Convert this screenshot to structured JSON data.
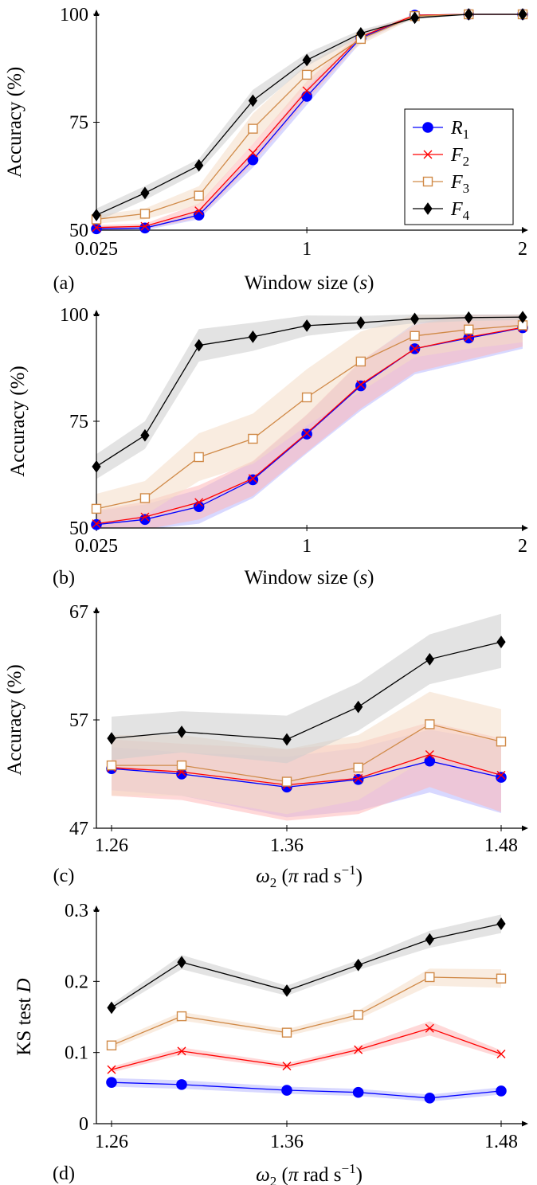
{
  "colors": {
    "R1": "#0000ff",
    "F2": "#ff0000",
    "F3": "#d08a48",
    "F4": "#000000",
    "band_R1": "#b8b8ff",
    "band_F2": "#ffb8b8",
    "band_F3": "#f4dcc6",
    "band_F4": "#cccccc"
  },
  "legend": {
    "R1": "R",
    "R1_sub": "1",
    "F2": "F",
    "F2_sub": "2",
    "F3": "F",
    "F3_sub": "3",
    "F4": "F",
    "F4_sub": "4"
  },
  "chart_data": [
    {
      "type": "line",
      "panel_label": "(a)",
      "xlabel": "Window size (s)",
      "ylabel": "Accuracy (%)",
      "xlim": [
        0.025,
        2
      ],
      "ylim": [
        50,
        100
      ],
      "x_ticks": [
        "0.025",
        "1",
        "2"
      ],
      "y_ticks": [
        "50",
        "75",
        "100"
      ],
      "legend_position": "center-right",
      "x": [
        0.025,
        0.25,
        0.5,
        0.75,
        1.0,
        1.25,
        1.5,
        1.75,
        2.0
      ],
      "series": [
        {
          "key": "R1",
          "name": "R1",
          "marker": "circle",
          "values": [
            50.3,
            50.5,
            53.5,
            66.3,
            81.0,
            94.5,
            99.8,
            100,
            100
          ],
          "lower": [
            49.8,
            50.0,
            52.5,
            64.5,
            79.0,
            93.5,
            99.5,
            99.9,
            99.9
          ],
          "upper": [
            50.8,
            51.0,
            54.5,
            68.0,
            83.0,
            95.5,
            100,
            100,
            100
          ]
        },
        {
          "key": "F2",
          "name": "F2",
          "marker": "x",
          "values": [
            50.6,
            50.9,
            54.5,
            67.9,
            82.3,
            94.8,
            99.8,
            100,
            100
          ],
          "lower": [
            50.0,
            50.3,
            52.8,
            65.5,
            80.0,
            93.8,
            99.5,
            99.9,
            99.9
          ],
          "upper": [
            51.2,
            51.5,
            56.2,
            70.0,
            84.5,
            95.8,
            100,
            100,
            100
          ]
        },
        {
          "key": "F3",
          "name": "F3",
          "marker": "square",
          "values": [
            52.5,
            53.8,
            58.0,
            73.5,
            86.0,
            94.3,
            99.6,
            100,
            100
          ],
          "lower": [
            51.5,
            52.5,
            55.8,
            70.0,
            83.5,
            93.0,
            99.2,
            99.9,
            99.9
          ],
          "upper": [
            53.5,
            55.0,
            60.2,
            77.0,
            88.5,
            95.6,
            100,
            100,
            100
          ]
        },
        {
          "key": "F4",
          "name": "F4",
          "marker": "diamond",
          "values": [
            53.5,
            58.6,
            65.0,
            80.0,
            89.4,
            95.6,
            99.2,
            100,
            100
          ],
          "lower": [
            52.0,
            57.0,
            63.5,
            77.5,
            88.0,
            94.8,
            98.8,
            99.9,
            99.9
          ],
          "upper": [
            55.0,
            60.2,
            66.5,
            82.5,
            91.0,
            96.4,
            99.6,
            100,
            100
          ]
        }
      ]
    },
    {
      "type": "line",
      "panel_label": "(b)",
      "xlabel": "Window size (s)",
      "ylabel": "Accuracy (%)",
      "xlim": [
        0.025,
        2
      ],
      "ylim": [
        50,
        100
      ],
      "x_ticks": [
        "0.025",
        "1",
        "2"
      ],
      "y_ticks": [
        "50",
        "75",
        "100"
      ],
      "x": [
        0.025,
        0.25,
        0.5,
        0.75,
        1.0,
        1.25,
        1.5,
        1.75,
        2.0
      ],
      "series": [
        {
          "key": "R1",
          "name": "R1",
          "marker": "circle",
          "values": [
            50.8,
            52.0,
            55.0,
            61.3,
            72.0,
            83.3,
            92.0,
            94.5,
            96.9
          ],
          "lower": [
            47.5,
            48.5,
            51.0,
            57.0,
            67.5,
            77.5,
            86.0,
            89.0,
            92.0
          ],
          "upper": [
            54.0,
            55.5,
            59.0,
            65.5,
            76.5,
            89.0,
            98.0,
            100,
            100
          ]
        },
        {
          "key": "F2",
          "name": "F2",
          "marker": "x",
          "values": [
            51.0,
            52.6,
            56.0,
            61.6,
            72.2,
            83.6,
            92.0,
            94.7,
            97.0
          ],
          "lower": [
            47.8,
            49.0,
            52.0,
            57.5,
            67.8,
            78.0,
            86.5,
            89.5,
            92.5
          ],
          "upper": [
            54.2,
            56.2,
            60.0,
            65.7,
            76.6,
            89.2,
            97.5,
            99.9,
            100
          ]
        },
        {
          "key": "F3",
          "name": "F3",
          "marker": "square",
          "values": [
            54.5,
            57.0,
            66.6,
            70.9,
            80.6,
            89.0,
            95.0,
            96.5,
            97.5
          ],
          "lower": [
            51.0,
            53.0,
            61.0,
            65.0,
            74.0,
            82.0,
            90.0,
            92.0,
            93.5
          ],
          "upper": [
            58.0,
            61.0,
            72.2,
            76.8,
            87.2,
            96.0,
            100,
            100,
            100
          ]
        },
        {
          "key": "F4",
          "name": "F4",
          "marker": "diamond",
          "values": [
            64.4,
            71.7,
            92.8,
            94.8,
            97.4,
            98.1,
            99.0,
            99.3,
            99.4
          ],
          "lower": [
            61.5,
            68.5,
            89.0,
            91.5,
            95.0,
            96.5,
            98.0,
            98.5,
            98.7
          ],
          "upper": [
            67.3,
            75.0,
            96.6,
            98.1,
            99.8,
            99.7,
            100,
            100,
            100
          ]
        }
      ]
    },
    {
      "type": "line",
      "panel_label": "(c)",
      "xlabel": "ω2 (π rad s−1)",
      "ylabel": "Accuracy (%)",
      "xlim": [
        1.25,
        1.49
      ],
      "ylim": [
        47,
        67
      ],
      "x_ticks": [
        "1.26",
        "1.36",
        "1.48"
      ],
      "y_ticks": [
        "47",
        "57",
        "67"
      ],
      "x": [
        1.26,
        1.3,
        1.36,
        1.4,
        1.44,
        1.48
      ],
      "series": [
        {
          "key": "R1",
          "name": "R1",
          "marker": "circle",
          "values": [
            52.5,
            52.0,
            50.8,
            51.5,
            53.2,
            51.7
          ],
          "lower": [
            50.5,
            50.0,
            48.0,
            48.6,
            50.3,
            48.4
          ],
          "upper": [
            54.5,
            54.0,
            53.6,
            54.4,
            56.1,
            55.0
          ]
        },
        {
          "key": "F2",
          "name": "F2",
          "marker": "x",
          "values": [
            52.6,
            52.2,
            51.0,
            51.6,
            53.8,
            51.9
          ],
          "lower": [
            50.0,
            49.6,
            47.7,
            48.3,
            50.8,
            48.5
          ],
          "upper": [
            55.2,
            54.8,
            54.3,
            54.9,
            56.8,
            55.3
          ]
        },
        {
          "key": "F3",
          "name": "F3",
          "marker": "square",
          "values": [
            52.8,
            52.8,
            51.3,
            52.6,
            56.6,
            55.0
          ],
          "lower": [
            50.0,
            50.0,
            48.3,
            49.6,
            53.6,
            52.0
          ],
          "upper": [
            55.6,
            55.6,
            54.3,
            55.6,
            59.6,
            58.0
          ]
        },
        {
          "key": "F4",
          "name": "F4",
          "marker": "diamond",
          "values": [
            55.3,
            55.9,
            55.2,
            58.2,
            62.6,
            64.2
          ],
          "lower": [
            53.3,
            54.0,
            53.0,
            56.0,
            60.3,
            61.8
          ],
          "upper": [
            57.3,
            57.8,
            57.4,
            60.4,
            64.9,
            66.8
          ]
        }
      ]
    },
    {
      "type": "line",
      "panel_label": "(d)",
      "xlabel": "ω2 (π rad s−1)",
      "ylabel": "KS test D",
      "xlim": [
        1.25,
        1.49
      ],
      "ylim": [
        0,
        0.3
      ],
      "x_ticks": [
        "1.26",
        "1.36",
        "1.48"
      ],
      "y_ticks": [
        "0",
        "0.1",
        "0.2",
        "0.3"
      ],
      "x": [
        1.26,
        1.3,
        1.36,
        1.4,
        1.44,
        1.48
      ],
      "series": [
        {
          "key": "R1",
          "name": "R1",
          "marker": "circle",
          "values": [
            0.058,
            0.055,
            0.047,
            0.044,
            0.036,
            0.046
          ],
          "lower": [
            0.052,
            0.049,
            0.042,
            0.039,
            0.031,
            0.041
          ],
          "upper": [
            0.064,
            0.061,
            0.052,
            0.049,
            0.041,
            0.051
          ]
        },
        {
          "key": "F2",
          "name": "F2",
          "marker": "x",
          "values": [
            0.076,
            0.102,
            0.081,
            0.104,
            0.134,
            0.098
          ],
          "lower": [
            0.072,
            0.097,
            0.077,
            0.099,
            0.124,
            0.093
          ],
          "upper": [
            0.08,
            0.107,
            0.085,
            0.109,
            0.144,
            0.103
          ]
        },
        {
          "key": "F3",
          "name": "F3",
          "marker": "square",
          "values": [
            0.11,
            0.151,
            0.128,
            0.153,
            0.206,
            0.204
          ],
          "lower": [
            0.105,
            0.145,
            0.123,
            0.147,
            0.194,
            0.191
          ],
          "upper": [
            0.115,
            0.157,
            0.133,
            0.159,
            0.218,
            0.217
          ]
        },
        {
          "key": "F4",
          "name": "F4",
          "marker": "diamond",
          "values": [
            0.163,
            0.227,
            0.187,
            0.223,
            0.259,
            0.281
          ],
          "lower": [
            0.158,
            0.217,
            0.18,
            0.216,
            0.247,
            0.268
          ],
          "upper": [
            0.168,
            0.237,
            0.194,
            0.23,
            0.271,
            0.294
          ]
        }
      ]
    }
  ]
}
